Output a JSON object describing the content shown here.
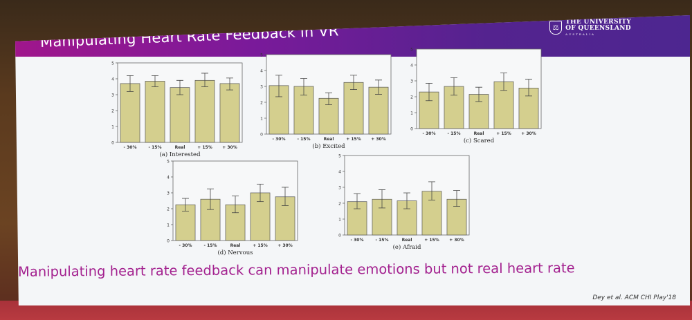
{
  "slide": {
    "title": "Manipulating Heart Rate Feedback in VR",
    "logo": {
      "line1": "THE UNIVERSITY",
      "line2": "OF QUEENSLAND",
      "line3": "AUSTRALIA",
      "icon": "crest-icon"
    },
    "conclusion": "Manipulating heart rate feedback can manipulate emotions but not real heart rate",
    "citation": "Dey et al. ACM CHI Play'18",
    "colors": {
      "title_gradient_start": "#a0168c",
      "title_gradient_end": "#4d2690",
      "conclusion_text": "#a3218f",
      "bar_fill": "#d4cf8e",
      "bar_stroke": "#555555"
    }
  },
  "chart_data": [
    {
      "type": "bar",
      "title": "(a) Interested",
      "categories": [
        "- 30%",
        "- 15%",
        "Real",
        "+ 15%",
        "+ 30%"
      ],
      "values": [
        3.7,
        3.85,
        3.45,
        3.9,
        3.7
      ],
      "error_low": [
        3.2,
        3.5,
        3.0,
        3.5,
        3.3
      ],
      "error_high": [
        4.2,
        4.2,
        3.9,
        4.35,
        4.05
      ],
      "ylim": [
        0,
        5
      ],
      "yticks": [
        "0",
        "1",
        "2",
        "3",
        "4",
        "5"
      ],
      "xlabel": "",
      "ylabel": ""
    },
    {
      "type": "bar",
      "title": "(b) Excited",
      "categories": [
        "- 30%",
        "- 15%",
        "Real",
        "+ 15%",
        "+ 30%"
      ],
      "values": [
        3.05,
        3.0,
        2.25,
        3.25,
        2.95
      ],
      "error_low": [
        2.35,
        2.45,
        1.85,
        2.8,
        2.5
      ],
      "error_high": [
        3.7,
        3.5,
        2.6,
        3.7,
        3.4
      ],
      "ylim": [
        0,
        5
      ],
      "yticks": [
        "0",
        "1",
        "2",
        "3",
        "4",
        "5"
      ],
      "xlabel": "",
      "ylabel": ""
    },
    {
      "type": "bar",
      "title": "(c) Scared",
      "categories": [
        "- 30%",
        "- 15%",
        "Real",
        "+ 15%",
        "+ 30%"
      ],
      "values": [
        2.3,
        2.65,
        2.15,
        2.95,
        2.55
      ],
      "error_low": [
        1.75,
        2.1,
        1.7,
        2.4,
        2.05
      ],
      "error_high": [
        2.85,
        3.2,
        2.6,
        3.5,
        3.1
      ],
      "ylim": [
        0,
        5
      ],
      "yticks": [
        "0",
        "1",
        "2",
        "3",
        "4",
        "5"
      ],
      "xlabel": "",
      "ylabel": ""
    },
    {
      "type": "bar",
      "title": "(d) Nervous",
      "categories": [
        "- 30%",
        "- 15%",
        "Real",
        "+ 15%",
        "+ 30%"
      ],
      "values": [
        2.25,
        2.6,
        2.25,
        3.0,
        2.75
      ],
      "error_low": [
        1.85,
        1.95,
        1.75,
        2.45,
        2.2
      ],
      "error_high": [
        2.65,
        3.25,
        2.8,
        3.55,
        3.35
      ],
      "ylim": [
        0,
        5
      ],
      "yticks": [
        "0",
        "1",
        "2",
        "3",
        "4",
        "5"
      ],
      "xlabel": "",
      "ylabel": ""
    },
    {
      "type": "bar",
      "title": "(e) Afraid",
      "categories": [
        "- 30%",
        "- 15%",
        "Real",
        "+ 15%",
        "+ 30%"
      ],
      "values": [
        2.1,
        2.25,
        2.15,
        2.75,
        2.25
      ],
      "error_low": [
        1.65,
        1.7,
        1.65,
        2.2,
        1.8
      ],
      "error_high": [
        2.6,
        2.85,
        2.65,
        3.35,
        2.8
      ],
      "ylim": [
        0,
        5
      ],
      "yticks": [
        "0",
        "1",
        "2",
        "3",
        "4",
        "5"
      ],
      "xlabel": "",
      "ylabel": ""
    }
  ]
}
